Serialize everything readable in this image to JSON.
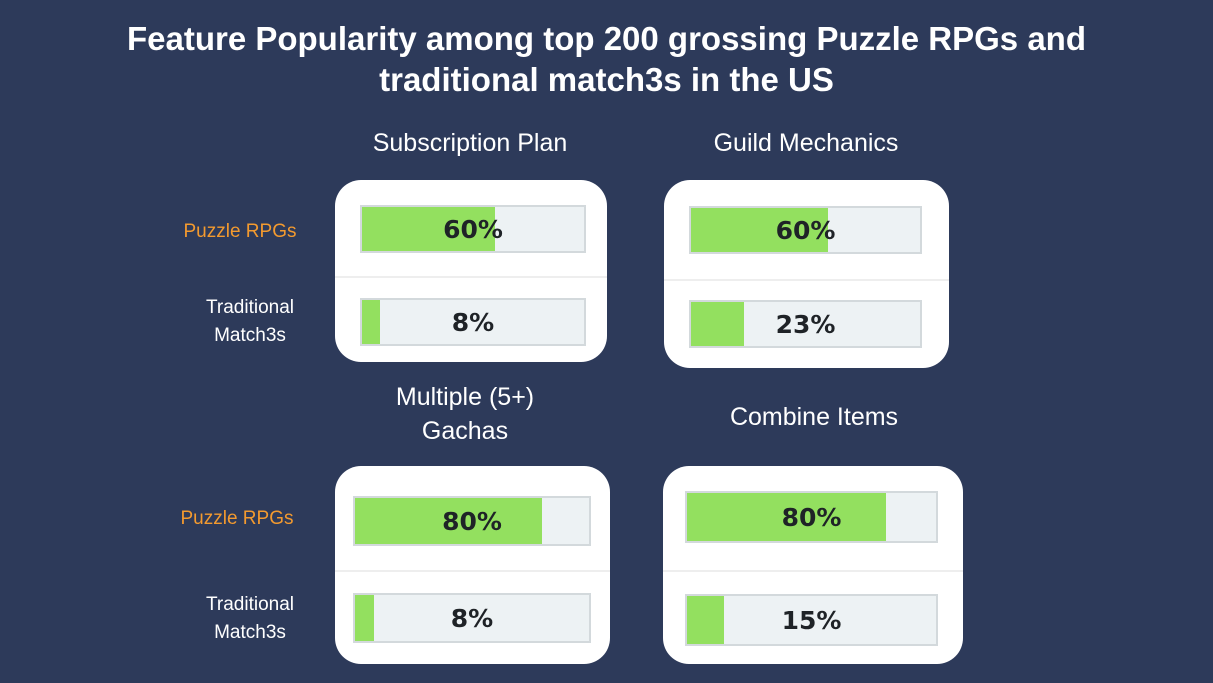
{
  "title_lines": [
    "Feature Popularity among top 200 grossing Puzzle RPGs and",
    "traditional match3s in the US"
  ],
  "labels": {
    "puzzle_rpgs": "Puzzle RPGs",
    "match3_line1": "Traditional",
    "match3_line2": "Match3s"
  },
  "colors": {
    "background": "#2d3a5a",
    "bar_fill": "#93e05f",
    "bar_track": "#edf2f4",
    "rpg_label": "#f39a2f"
  },
  "chart_data": [
    {
      "type": "bar",
      "title": "Subscription Plan",
      "categories": [
        "Puzzle RPGs",
        "Traditional Match3s"
      ],
      "values": [
        60,
        8
      ],
      "value_labels": [
        "60%",
        "8%"
      ],
      "ylim": [
        0,
        100
      ]
    },
    {
      "type": "bar",
      "title": "Guild Mechanics",
      "categories": [
        "Puzzle RPGs",
        "Traditional Match3s"
      ],
      "values": [
        60,
        23
      ],
      "value_labels": [
        "60%",
        "23%"
      ],
      "ylim": [
        0,
        100
      ]
    },
    {
      "type": "bar",
      "title": "Multiple (5+) Gachas",
      "title_lines": [
        "Multiple (5+)",
        "Gachas"
      ],
      "categories": [
        "Puzzle RPGs",
        "Traditional Match3s"
      ],
      "values": [
        80,
        8
      ],
      "value_labels": [
        "80%",
        "8%"
      ],
      "ylim": [
        0,
        100
      ]
    },
    {
      "type": "bar",
      "title": "Combine Items",
      "categories": [
        "Puzzle RPGs",
        "Traditional Match3s"
      ],
      "values": [
        80,
        15
      ],
      "value_labels": [
        "80%",
        "15%"
      ],
      "ylim": [
        0,
        100
      ]
    }
  ]
}
